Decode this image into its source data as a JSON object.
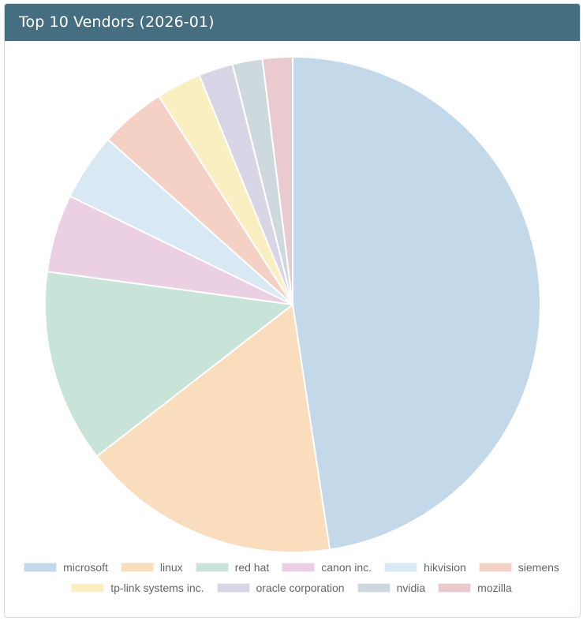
{
  "header": {
    "title": "Top 10 Vendors (2026-01)"
  },
  "chart_data": {
    "type": "pie",
    "categories": [
      "microsoft",
      "linux",
      "red hat",
      "canon inc.",
      "hikvision",
      "siemens",
      "tp-link systems inc.",
      "oracle corporation",
      "nvidia",
      "mozilla"
    ],
    "values": [
      48.7,
      17.3,
      12.9,
      5.2,
      4.5,
      4.4,
      3.0,
      2.3,
      2.0,
      2.0
    ],
    "colors": [
      "#c3d9e9",
      "#f9ddbd",
      "#c8e3d7",
      "#ebd0e3",
      "#d8e9f4",
      "#f4d1c4",
      "#f9efc0",
      "#d8d6e6",
      "#ced9de",
      "#ebcacf"
    ],
    "legend_position": "bottom",
    "title": "Top 10 Vendors (2026-01)"
  }
}
